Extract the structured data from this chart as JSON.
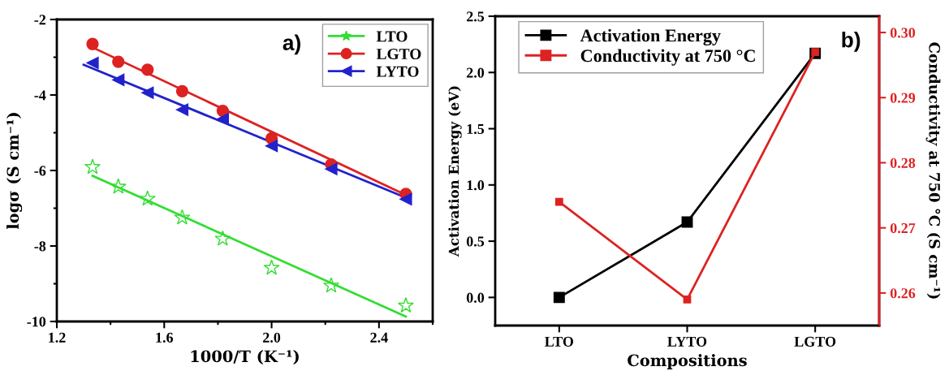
{
  "chart_data": [
    {
      "type": "scatter",
      "annotations": [
        "a)"
      ],
      "xlabel": "1000/T (K⁻¹)",
      "ylabel": "logσ (S cm⁻¹)",
      "xlim": [
        1.2,
        2.6
      ],
      "xticks": [
        1.2,
        1.6,
        {
          "value": 2,
          "label": "2.0"
        },
        2.4
      ],
      "ylim": [
        -10,
        -2
      ],
      "yticks": [
        -10,
        -8,
        -6,
        -4,
        -2
      ],
      "grid": false,
      "legend": "top right",
      "series": [
        {
          "name": "LTO",
          "color": "#33dd33",
          "marker": "star",
          "x": [
            1.333,
            1.429,
            1.538,
            1.667,
            1.818,
            2.0,
            2.222,
            2.5
          ],
          "values": [
            -5.91,
            -6.43,
            -6.75,
            -7.25,
            -7.81,
            -8.58,
            -9.05,
            -9.58
          ]
        },
        {
          "name": "LGTO",
          "color": "#dd2222",
          "marker": "circle",
          "x": [
            1.333,
            1.429,
            1.538,
            1.667,
            1.818,
            2.0,
            2.222,
            2.5
          ],
          "values": [
            -2.65,
            -3.12,
            -3.33,
            -3.9,
            -4.42,
            -5.15,
            -5.84,
            -6.62
          ]
        },
        {
          "name": "LYTO",
          "color": "#2222cc",
          "marker": "triangle",
          "x": [
            1.333,
            1.429,
            1.538,
            1.667,
            1.818,
            2.0,
            2.222,
            2.5
          ],
          "values": [
            -3.15,
            -3.6,
            -3.94,
            -4.39,
            -4.64,
            -5.35,
            -5.96,
            -6.76
          ]
        },
        {
          "type": "line",
          "color": "#33dd33",
          "x": [
            1.333,
            2.5
          ],
          "values": [
            -6.14,
            -9.87
          ]
        },
        {
          "type": "line",
          "color": "#dd2222",
          "x": [
            1.333,
            2.5
          ],
          "values": [
            -2.74,
            -6.65
          ]
        },
        {
          "type": "line",
          "color": "#2222cc",
          "x": [
            1.3,
            2.5
          ],
          "values": [
            -3.2,
            -6.72
          ]
        }
      ]
    },
    {
      "type": "line",
      "annotations": [
        "b)"
      ],
      "xlabel": "Compositions",
      "ylabel": "Activation Energy (eV)",
      "y2label": "Conductivity at 750 °C (S cm⁻¹)",
      "categories": [
        "LTO",
        "LYTO",
        "LGTO"
      ],
      "ylim": [
        -0.25,
        2.5
      ],
      "yticks": [
        {
          "value": 0,
          "label": "0.0"
        },
        0.5,
        {
          "value": 1,
          "label": "1.0"
        },
        1.5,
        {
          "value": 2,
          "label": "2.0"
        },
        2.5
      ],
      "y2lim": [
        0.255,
        0.3025
      ],
      "y2ticks": [
        0.26,
        0.27,
        0.28,
        0.29,
        {
          "value": 0.3,
          "label": "0.30"
        }
      ],
      "grid": false,
      "legend": "top",
      "marker": "square",
      "series": [
        {
          "name": "Activation Energy",
          "color": "#000000",
          "values": [
            0.0,
            0.67,
            2.17
          ]
        },
        {
          "name": "Conductivity at 750 °C",
          "color": "#dd2222",
          "axis": "y2",
          "values": [
            0.274,
            0.259,
            0.297
          ]
        }
      ]
    }
  ]
}
